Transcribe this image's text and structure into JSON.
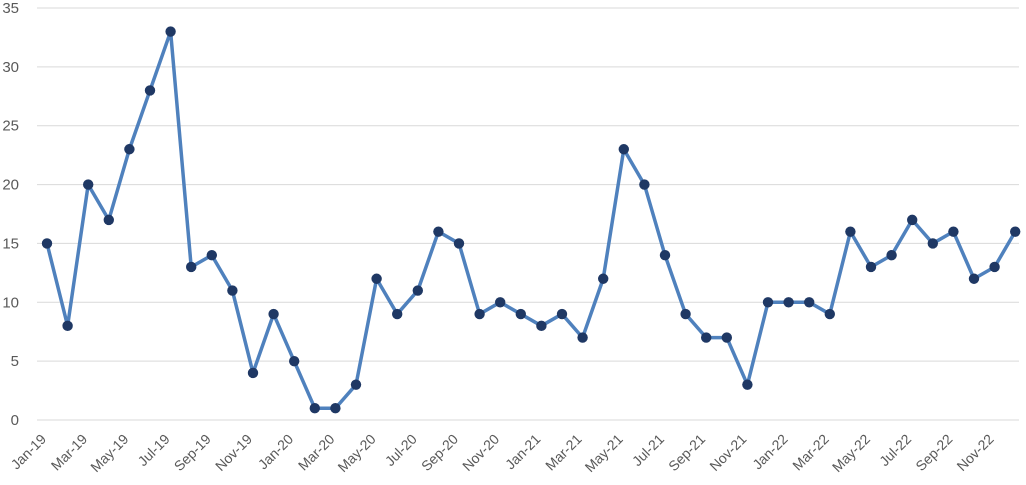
{
  "chart_data": {
    "type": "line",
    "title": "",
    "xlabel": "",
    "ylabel": "",
    "ylim": [
      0,
      35
    ],
    "y_ticks": [
      0,
      5,
      10,
      15,
      20,
      25,
      30,
      35
    ],
    "grid": "horizontal",
    "legend": "none",
    "x": [
      "Jan-19",
      "Feb-19",
      "Mar-19",
      "Apr-19",
      "May-19",
      "Jun-19",
      "Jul-19",
      "Aug-19",
      "Sep-19",
      "Oct-19",
      "Nov-19",
      "Dec-19",
      "Jan-20",
      "Feb-20",
      "Mar-20",
      "Apr-20",
      "May-20",
      "Jun-20",
      "Jul-20",
      "Aug-20",
      "Sep-20",
      "Oct-20",
      "Nov-20",
      "Dec-20",
      "Jan-21",
      "Feb-21",
      "Mar-21",
      "Apr-21",
      "May-21",
      "Jun-21",
      "Jul-21",
      "Aug-21",
      "Sep-21",
      "Oct-21",
      "Nov-21",
      "Dec-21",
      "Jan-22",
      "Feb-22",
      "Mar-22",
      "Apr-22",
      "May-22",
      "Jun-22",
      "Jul-22",
      "Aug-22",
      "Sep-22",
      "Oct-22",
      "Nov-22",
      "Dec-22"
    ],
    "x_tick_labels": [
      "Jan-19",
      "Mar-19",
      "May-19",
      "Jul-19",
      "Sep-19",
      "Nov-19",
      "Jan-20",
      "Mar-20",
      "May-20",
      "Jul-20",
      "Sep-20",
      "Nov-20",
      "Jan-21",
      "Mar-21",
      "May-21",
      "Jul-21",
      "Sep-21",
      "Nov-21",
      "Jan-22",
      "Mar-22",
      "May-22",
      "Jul-22",
      "Sep-22",
      "Nov-22"
    ],
    "series": [
      {
        "values": [
          15,
          8,
          20,
          17,
          23,
          28,
          33,
          13,
          14,
          11,
          4,
          9,
          5,
          1,
          1,
          3,
          12,
          9,
          11,
          16,
          15,
          9,
          10,
          9,
          8,
          9,
          7,
          12,
          23,
          20,
          14,
          9,
          7,
          7,
          3,
          10,
          10,
          10,
          9,
          16,
          13,
          14,
          17,
          15,
          16,
          12,
          13,
          16
        ]
      }
    ],
    "colors": {
      "line": "#4F81BD",
      "marker": "#1F3864",
      "grid": "#D9D9D9",
      "axis_text": "#595959"
    }
  }
}
